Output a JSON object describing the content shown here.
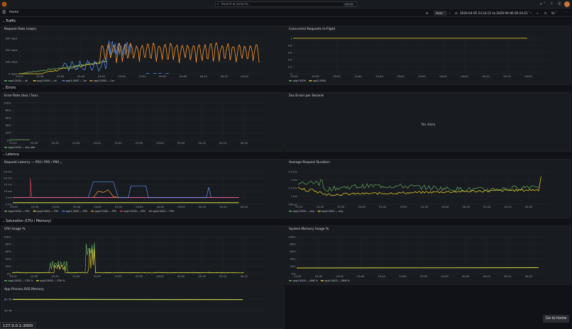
{
  "topbar": {
    "search_placeholder": "Search or jump to...",
    "search_shortcut": "ctrl+k",
    "plus_label": "+ ˅",
    "help_icon": "?",
    "news_icon": "⦿"
  },
  "subbar": {
    "breadcrumb": "Home",
    "refresh_interval_label": "Auto ˅",
    "time_range": "2026-04-05 23:24:21 to 2026-04-06 00:24:21 ˅",
    "zoom_label": "5s ˅"
  },
  "rows": {
    "traffic": "Traffic",
    "errors": "Errors",
    "latency": "Latency",
    "saturation": "Saturation (CPU / Memory)"
  },
  "x_ticks": [
    "23:25",
    "23:30",
    "23:35",
    "23:40",
    "23:45",
    "23:50",
    "23:55",
    "00:00",
    "00:05",
    "00:10",
    "00:15",
    "00:20"
  ],
  "panels": {
    "request_rate": {
      "title": "Request Rate (req/s)",
      "y_ticks": [
        "0 req/s",
        "100 req/s",
        "200 req/s",
        "300 req/s"
      ],
      "legend": [
        "app1:3000 — all",
        "app2:3000 — all",
        "app1:3000 — 1m",
        "app2:3000 — 1m"
      ]
    },
    "concurrent": {
      "title": "Concurrent Requests In-Flight",
      "y_ticks": [
        "0",
        "0.2",
        "0.4",
        "0.6",
        "0.8",
        "1"
      ],
      "legend": [
        "app1:3000",
        "app2:3000"
      ]
    },
    "error_rate": {
      "title": "Error Rate (4xx / 5xx)",
      "y_ticks": [
        "0%",
        "20%",
        "40%",
        "60%",
        "80%",
        "100%"
      ],
      "legend": [
        "app1:3000 — 4xx rate"
      ]
    },
    "errors_5xx": {
      "title": "5xx Errors per Second",
      "no_data": "No data"
    },
    "latency": {
      "title": "Request Latency — P50 / P95 / P99",
      "y_ticks": [
        "0 ms",
        "5 ms",
        "10 ms",
        "15 ms",
        "20 ms",
        "25 ms"
      ],
      "legend": [
        "app1:3000 — P50",
        "app2:3000 — P50",
        "app1:3000 — P95",
        "app2:3000 — P95",
        "app1:3000 — P99",
        "app2:3000 — P99"
      ]
    },
    "avg_duration": {
      "title": "Average Request Duration",
      "y_ticks": [
        "500 µs",
        "1 ms",
        "1.5 ms",
        "2 ms",
        "2.5 ms"
      ],
      "legend": [
        "app1:3000 — avg",
        "app2:3000 — avg"
      ]
    },
    "cpu": {
      "title": "CPU Usage %",
      "y_ticks": [
        "0%",
        "20%",
        "40%",
        "60%",
        "80%",
        "100%"
      ],
      "legend": [
        "app1:3000 — CPU %",
        "app2:3000 — CPU %"
      ]
    },
    "sys_mem": {
      "title": "System Memory Usage %",
      "y_ticks": [
        "0%",
        "20%",
        "40%",
        "60%",
        "80%",
        "100%"
      ],
      "legend": [
        "app1:3000 — RAM %",
        "app2:3000 — RAM %"
      ]
    },
    "rss": {
      "title": "App Process RSS Memory",
      "y_ticks": [
        "40 TB",
        "80 TB"
      ]
    }
  },
  "footer": {
    "url": "127.0.0.1:3000",
    "go_home": "Go to home"
  },
  "colors": {
    "green": "#73bf69",
    "yellow": "#fade2a",
    "blue": "#5794f2",
    "orange": "#ff9830",
    "red": "#f2495c",
    "purple": "#b877d9",
    "grid": "#24272c"
  }
}
